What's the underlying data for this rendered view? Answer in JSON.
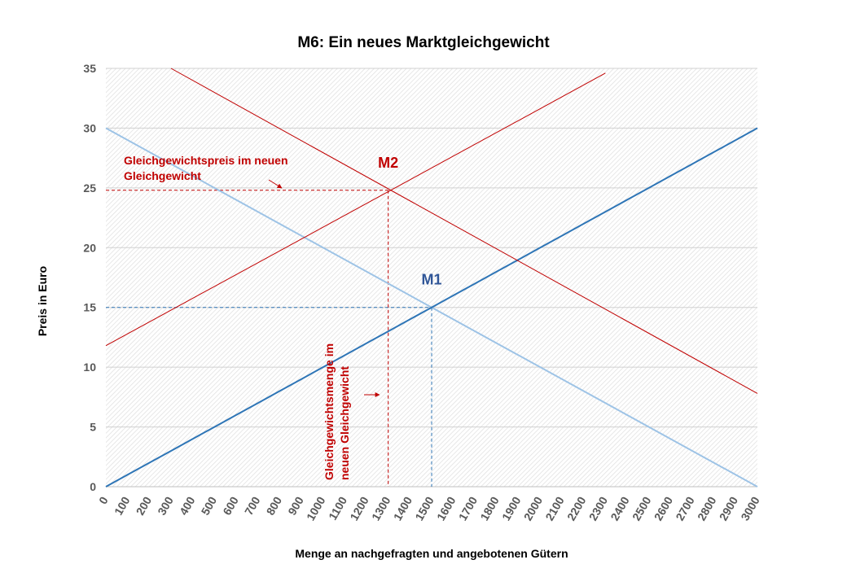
{
  "chart_data": {
    "type": "line",
    "title": "M6: Ein neues Marktgleichgewicht",
    "xlabel": "Menge an nachgefragten und angebotenen Gütern",
    "ylabel": "Preis in Euro",
    "xlim": [
      0,
      3000
    ],
    "ylim": [
      0,
      35
    ],
    "x_ticks": [
      0,
      100,
      200,
      300,
      400,
      500,
      600,
      700,
      800,
      900,
      1000,
      1100,
      1200,
      1300,
      1400,
      1500,
      1600,
      1700,
      1800,
      1900,
      2000,
      2100,
      2200,
      2300,
      2400,
      2500,
      2600,
      2700,
      2800,
      2900,
      3000
    ],
    "y_ticks": [
      0,
      5,
      10,
      15,
      20,
      25,
      30,
      35
    ],
    "grid": true,
    "series": [
      {
        "color": "#9dc3e6",
        "points": [
          [
            0,
            30
          ],
          [
            3000,
            0
          ]
        ]
      },
      {
        "color": "#2e75b6",
        "points": [
          [
            0,
            0
          ],
          [
            100,
            1
          ],
          [
            200,
            2
          ],
          [
            300,
            3
          ],
          [
            400,
            4
          ],
          [
            500,
            5
          ],
          [
            600,
            6
          ],
          [
            700,
            7
          ],
          [
            800,
            8
          ],
          [
            900,
            9
          ],
          [
            1000,
            10
          ],
          [
            1100,
            11
          ],
          [
            1200,
            12
          ],
          [
            1300,
            13
          ],
          [
            1400,
            14
          ],
          [
            1500,
            15
          ],
          [
            1600,
            16
          ],
          [
            1700,
            17
          ],
          [
            1800,
            18
          ],
          [
            1900,
            19
          ],
          [
            2000,
            20
          ],
          [
            2100,
            21
          ],
          [
            2200,
            22
          ],
          [
            2300,
            23
          ],
          [
            2400,
            24
          ],
          [
            2500,
            25
          ],
          [
            2600,
            26
          ],
          [
            2700,
            27
          ],
          [
            2800,
            28
          ],
          [
            2900,
            29
          ],
          [
            3000,
            30
          ]
        ]
      },
      {
        "color": "#c00000",
        "points": [
          [
            300,
            35
          ],
          [
            3000,
            7.8
          ]
        ]
      },
      {
        "color": "#c00000",
        "points": [
          [
            0,
            11.8
          ],
          [
            2300,
            34.6
          ]
        ]
      }
    ],
    "guides": [
      {
        "color": "#2e75b6",
        "x": 1500,
        "y": 15
      },
      {
        "color": "#c00000",
        "x": 1300,
        "y": 24.8
      }
    ],
    "points": [
      {
        "label": "M1",
        "x": 1500,
        "y": 15,
        "color": "#2f5597"
      },
      {
        "label": "M2",
        "x": 1300,
        "y": 24.8,
        "color": "#c00000"
      }
    ],
    "annotations": {
      "price_lines": [
        "Gleichgewichtspreis im neuen",
        "Gleichgewicht"
      ],
      "quantity_lines": [
        "Gleichgewichtsmenge im",
        "neuen Gleichgewicht"
      ]
    }
  }
}
